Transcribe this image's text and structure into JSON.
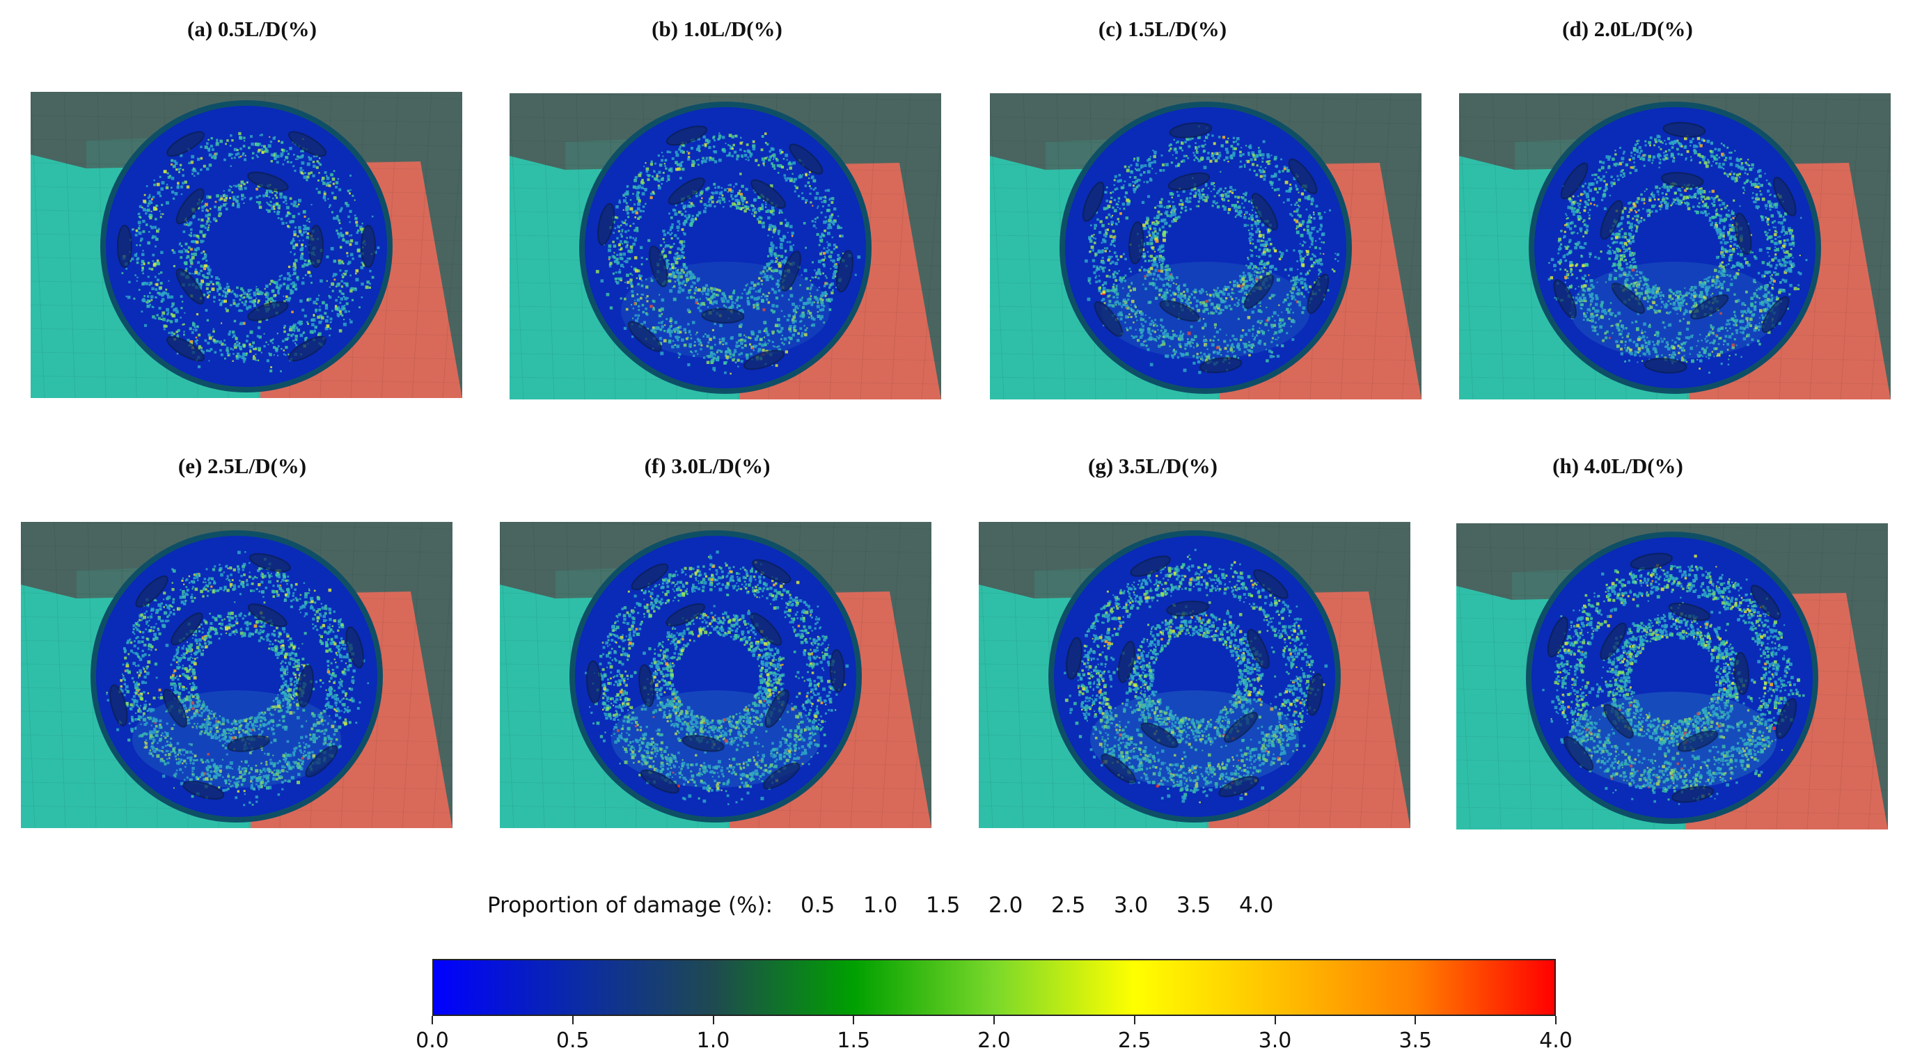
{
  "figure": {
    "panels": [
      {
        "title": "(a)  0.5L/D(%)",
        "damage_percent": 0.5
      },
      {
        "title": "(b)  1.0L/D(%)",
        "damage_percent": 1.0
      },
      {
        "title": "(c)  1.5L/D(%)",
        "damage_percent": 1.5
      },
      {
        "title": "(d)  2.0L/D(%)",
        "damage_percent": 2.0
      },
      {
        "title": "(e)  2.5L/D(%)",
        "damage_percent": 2.5
      },
      {
        "title": "(f)  3.0L/D(%)",
        "damage_percent": 3.0
      },
      {
        "title": "(g)  3.5L/D(%)",
        "damage_percent": 3.5
      },
      {
        "title": "(h)  4.0L/D(%)",
        "damage_percent": 4.0
      }
    ],
    "legend": {
      "caption": "Proportion of damage (%):",
      "values": [
        "0.5",
        "1.0",
        "1.5",
        "2.0",
        "2.5",
        "3.0",
        "3.5",
        "4.0"
      ]
    },
    "colorbar": {
      "min": 0.0,
      "max": 4.0,
      "ticks": [
        "0.0",
        "0.5",
        "1.0",
        "1.5",
        "2.0",
        "2.5",
        "3.0",
        "3.5",
        "4.0"
      ],
      "colors": [
        "#0000ff",
        "#0a2aa8",
        "#1f4a50",
        "#00a000",
        "#7ad82a",
        "#ffff00",
        "#ffc200",
        "#ff8000",
        "#ff0000"
      ]
    },
    "colors": {
      "background_teal": "#2fbfa8",
      "background_red": "#d96a5a",
      "background_dark": "#4a6560",
      "disc_blue": "#0a2ab8",
      "rim": "#0e4f66"
    }
  }
}
